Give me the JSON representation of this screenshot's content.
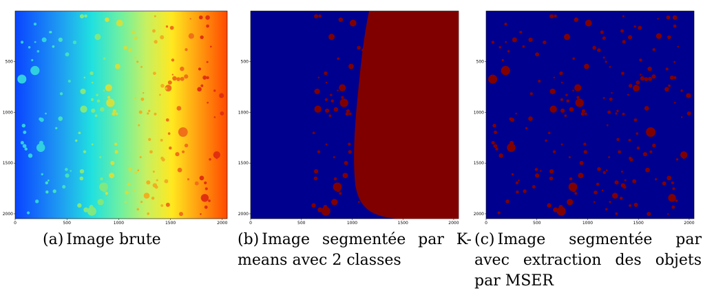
{
  "figures": [
    {
      "label": "(a)",
      "caption": "Image brute",
      "colors": {
        "scheme": "jet",
        "blob_cool": "#2fd8c0",
        "blob_warm": "#e03c10"
      }
    },
    {
      "label": "(b)",
      "caption": "Image segmentée par K-means avec 2 classes",
      "colors": {
        "background": "#00008f",
        "foreground": "#800000"
      }
    },
    {
      "label": "(c)",
      "caption": "Image segmentée par avec extraction des objets par MSER",
      "colors": {
        "background": "#00008f",
        "foreground": "#800000"
      }
    }
  ],
  "axes": {
    "x_ticks": [
      "0",
      "500",
      "1000",
      "1500",
      "2000"
    ],
    "y_ticks": [
      "500",
      "1000",
      "1500",
      "2000"
    ]
  }
}
